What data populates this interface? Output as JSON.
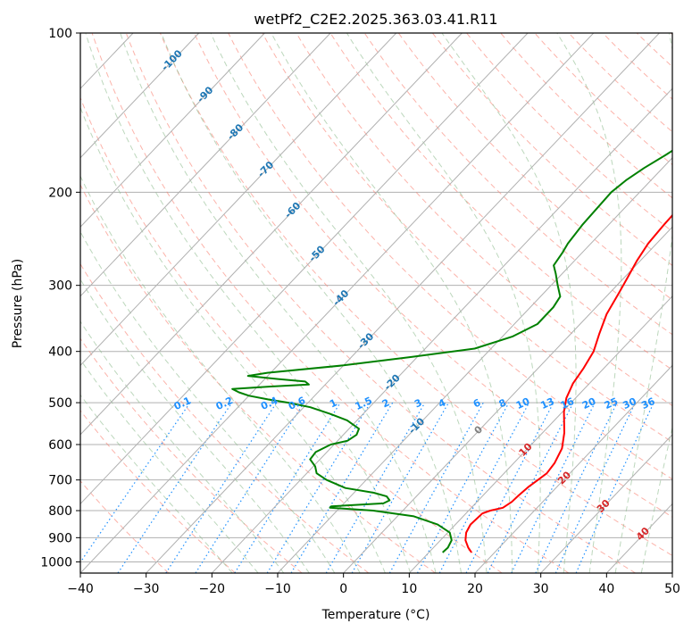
{
  "chart_data": {
    "type": "line",
    "title": "wetPf2_C2E2.2025.363.03.41.R11",
    "xlabel": "Temperature (°C)",
    "ylabel": "Pressure (hPa)",
    "xlim": [
      -40,
      50
    ],
    "ylim": [
      1050,
      100
    ],
    "y_scale": "log",
    "grid": true,
    "x_ticks": [
      -40,
      -30,
      -20,
      -10,
      0,
      10,
      20,
      30,
      40,
      50
    ],
    "x_tick_labels": [
      "−40",
      "−30",
      "−20",
      "−10",
      "0",
      "10",
      "20",
      "30",
      "40",
      "50"
    ],
    "y_ticks": [
      100,
      200,
      300,
      400,
      500,
      600,
      700,
      800,
      900,
      1000
    ],
    "y_tick_labels": [
      "100",
      "200",
      "300",
      "400",
      "500",
      "600",
      "700",
      "800",
      "900",
      "1000"
    ],
    "colors": {
      "temperature": "#ff0000",
      "dewpoint": "#008000",
      "isotherm_label": "#1f77b4",
      "dry_adiabat": "#fa8072",
      "moist_adiabat": "#8fbc8f",
      "mixing_ratio": "#1e90ff",
      "warm_label": "#d62728",
      "zero_label": "#808080",
      "grid": "#b0b0b0"
    },
    "series": [
      {
        "key": "temperature",
        "x": [
          16.5,
          15.3,
          13.8,
          12.8,
          12.3,
          12.5,
          13.3,
          14.8,
          15.3,
          15.4,
          15.7,
          16.1,
          16.5,
          16.2,
          15.2,
          13.3,
          10.2,
          8.6,
          7.5,
          6.9,
          6.0,
          4.3,
          2.6,
          1.4,
          0.5,
          -0.5,
          -1.3,
          -1.6,
          -1.7,
          -1.4,
          -0.2,
          1.7,
          4.1,
          6.0,
          7.2,
          8.2,
          9.6,
          11.2,
          12.8,
          14.2,
          15.2,
          16.0,
          16.8,
          17.3,
          17.8,
          18.3,
          18.9,
          19.5
        ],
        "y": [
          960,
          940,
          910,
          880,
          850,
          810,
          800,
          790,
          770,
          750,
          720,
          700,
          680,
          650,
          610,
          570,
          520,
          490,
          460,
          430,
          400,
          370,
          340,
          310,
          290,
          270,
          250,
          230,
          220,
          210,
          200,
          190,
          180,
          170,
          160,
          150,
          140,
          130,
          124,
          120,
          116,
          113,
          110,
          107,
          105,
          103,
          101,
          100
        ]
      },
      {
        "key": "dewpoint",
        "x": [
          12.1,
          12.2,
          11.7,
          10.3,
          7.3,
          2.5,
          -4.5,
          -11.5,
          -11.5,
          -4.0,
          -3.5,
          -4.5,
          -7.0,
          -12.0,
          -16.0,
          -18.5,
          -19.7,
          -21.5,
          -21.7,
          -20.5,
          -18.5,
          -18.0,
          -18.5,
          -21.5,
          -25.0,
          -29.0,
          -33.0,
          -36.5,
          -40.0,
          -42.0,
          -43.5,
          -38.0,
          -32.5,
          -33.5,
          -38.0,
          -43.0,
          -40.5,
          -30.0,
          -21.0,
          -12.5,
          -8.5,
          -6.5,
          -6.5,
          -7.0,
          -9.0,
          -11.0,
          -12.5,
          -13.0,
          -13.5,
          -14.0,
          -14.3,
          -13.8,
          -12.8,
          -11.4,
          -10.1,
          -9.0,
          -7.8,
          -6.2,
          -4.8,
          -3.8,
          -3.3,
          -2.5
        ],
        "y": [
          960,
          940,
          910,
          880,
          850,
          820,
          800,
          790,
          785,
          775,
          765,
          752,
          740,
          725,
          700,
          680,
          660,
          640,
          620,
          600,
          590,
          575,
          560,
          540,
          525,
          510,
          500,
          493,
          485,
          478,
          471,
          466,
          462,
          456,
          451,
          445,
          439,
          425,
          410,
          395,
          375,
          355,
          330,
          315,
          300,
          285,
          275,
          260,
          250,
          230,
          200,
          190,
          180,
          170,
          160,
          150,
          140,
          130,
          120,
          110,
          105,
          100
        ]
      }
    ],
    "isotherm_labels": [
      "-100",
      "-90",
      "-80",
      "-70",
      "-60",
      "-50",
      "-40",
      "-30",
      "-20",
      "-10",
      "0",
      "10",
      "20",
      "30",
      "40"
    ],
    "isotherm_label_values": [
      -100,
      -90,
      -80,
      -70,
      -60,
      -50,
      -40,
      -30,
      -20,
      -10,
      0,
      10,
      20,
      30,
      40
    ],
    "mixing_ratio_labels": [
      "0.1",
      "0.2",
      "0.4",
      "0.6",
      "1",
      "1.5",
      "2",
      "3",
      "4",
      "6",
      "8",
      "10",
      "13",
      "16",
      "20",
      "25",
      "30",
      "36"
    ],
    "mixing_ratio_values": [
      0.1,
      0.2,
      0.4,
      0.6,
      1,
      1.5,
      2,
      3,
      4,
      6,
      8,
      10,
      13,
      16,
      20,
      25,
      30,
      36
    ]
  }
}
